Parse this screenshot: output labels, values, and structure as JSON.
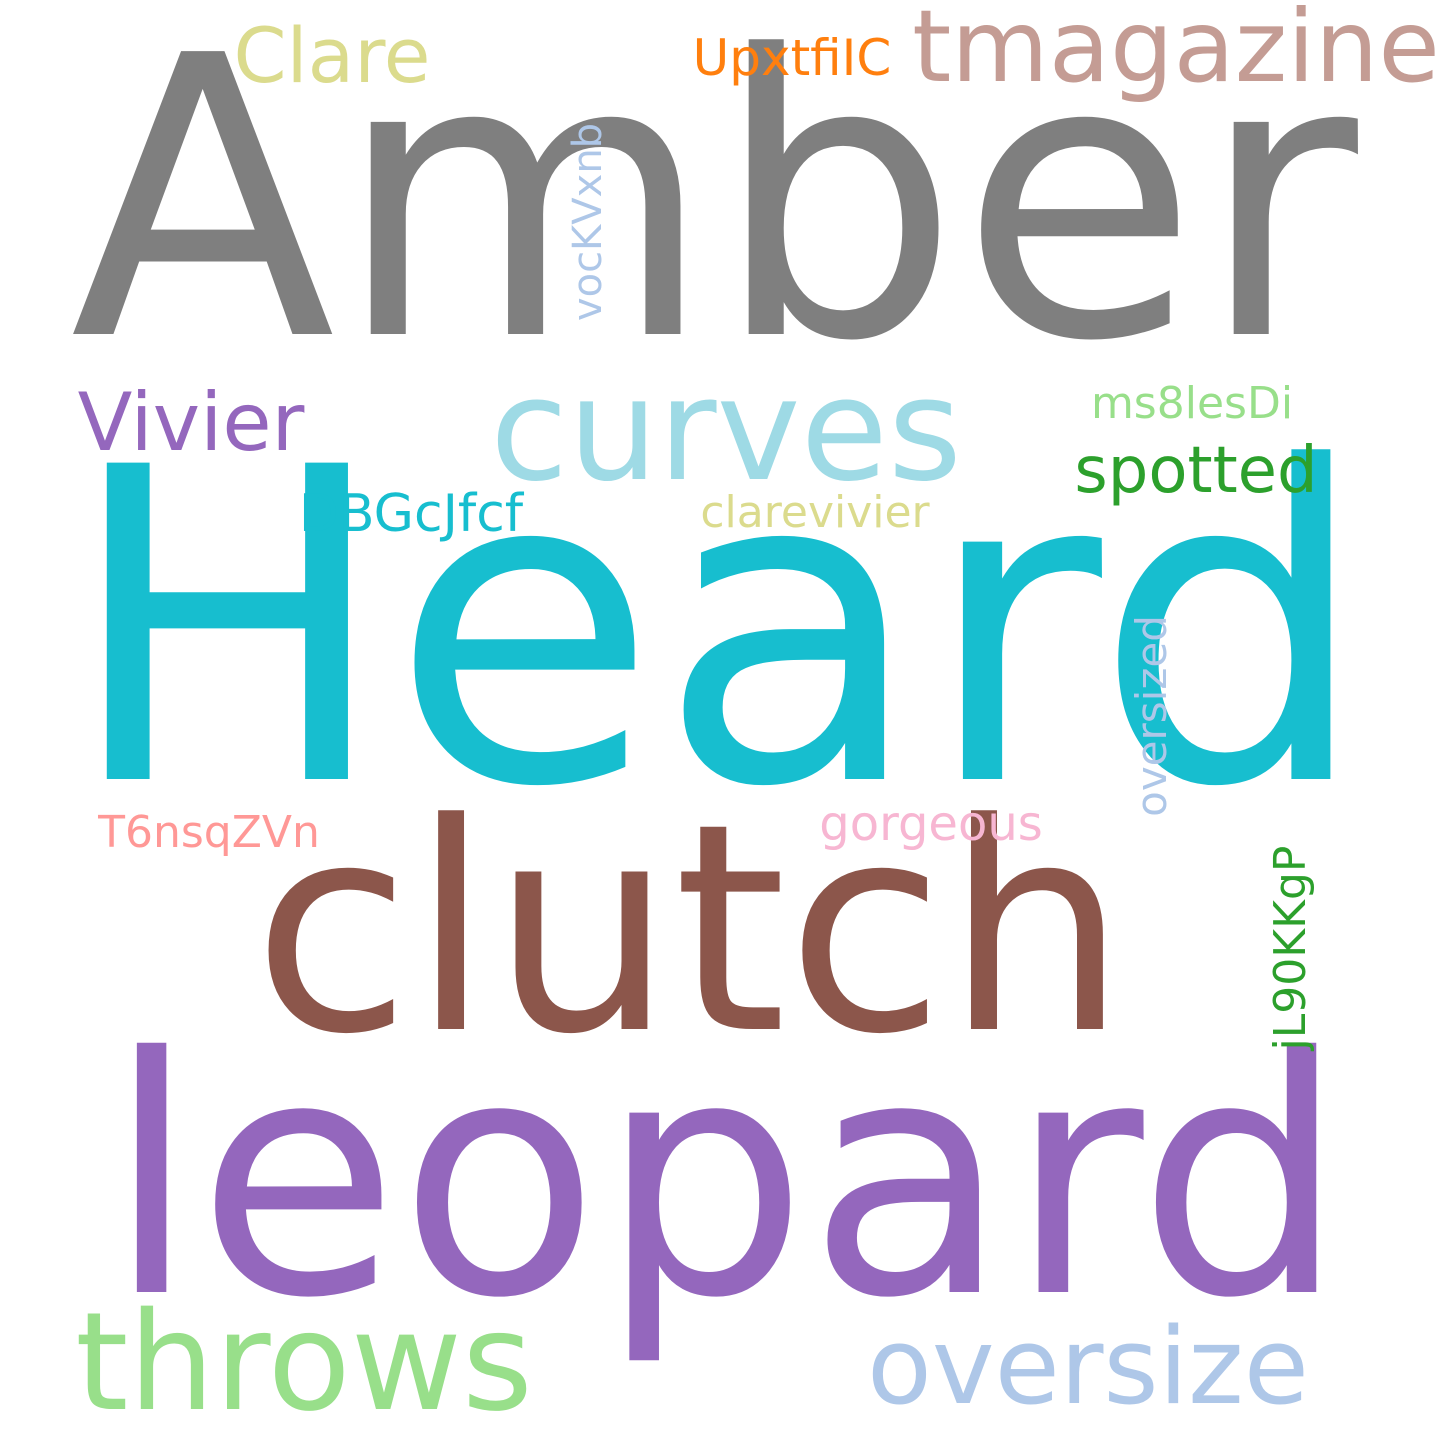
{
  "words": [
    {
      "text": "Amber",
      "color": "#7f7f7f"
    },
    {
      "text": "Heard",
      "color": "#17becf"
    },
    {
      "text": "clutch",
      "color": "#8c564b"
    },
    {
      "text": "leopard",
      "color": "#9467bd"
    },
    {
      "text": "curves",
      "color": "#9edae5"
    },
    {
      "text": "tmagazine",
      "color": "#c49c94"
    },
    {
      "text": "Clare",
      "color": "#dbdb8d"
    },
    {
      "text": "UpxtfiIC",
      "color": "#ff7f0e"
    },
    {
      "text": "vocKVxnb",
      "color": "#aec7e8"
    },
    {
      "text": "Vivier",
      "color": "#9467bd"
    },
    {
      "text": "ms8lesDi",
      "color": "#98df8a"
    },
    {
      "text": "spotted",
      "color": "#2ca02c"
    },
    {
      "text": "DBGcJfcf",
      "color": "#17becf"
    },
    {
      "text": "clarevivier",
      "color": "#dbdb8d"
    },
    {
      "text": "oversized",
      "color": "#aec7e8"
    },
    {
      "text": "T6nsqZVn",
      "color": "#ff9896"
    },
    {
      "text": "gorgeous",
      "color": "#f7b6d2"
    },
    {
      "text": "jL90KKgP",
      "color": "#2ca02c"
    },
    {
      "text": "throws",
      "color": "#98df8a"
    },
    {
      "text": "oversize",
      "color": "#aec7e8"
    }
  ]
}
